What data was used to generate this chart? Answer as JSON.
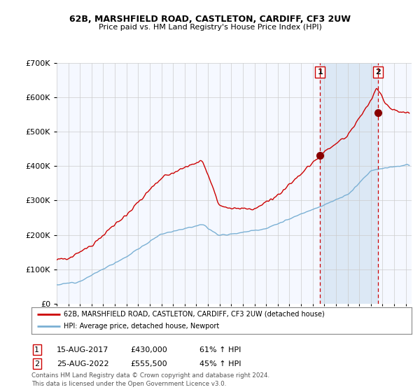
{
  "title1": "62B, MARSHFIELD ROAD, CASTLETON, CARDIFF, CF3 2UW",
  "title2": "Price paid vs. HM Land Registry's House Price Index (HPI)",
  "legend_label1": "62B, MARSHFIELD ROAD, CASTLETON, CARDIFF, CF3 2UW (detached house)",
  "legend_label2": "HPI: Average price, detached house, Newport",
  "transaction1_label": "15-AUG-2017",
  "transaction1_price": "£430,000",
  "transaction1_hpi": "61% ↑ HPI",
  "transaction2_label": "25-AUG-2022",
  "transaction2_price": "£555,500",
  "transaction2_hpi": "45% ↑ HPI",
  "footer": "Contains HM Land Registry data © Crown copyright and database right 2024.\nThis data is licensed under the Open Government Licence v3.0.",
  "ylim": [
    0,
    700000
  ],
  "xlim_start": 1995,
  "xlim_end": 2025.5,
  "color_red": "#cc0000",
  "color_blue": "#7ab0d4",
  "color_dashed": "#cc0000",
  "background_plot": "#f5f8ff",
  "background_highlight": "#dce8f5",
  "background_fig": "#ffffff",
  "grid_color": "#cccccc",
  "t1_x": 2017.625,
  "t1_y": 430000,
  "t2_x": 2022.625,
  "t2_y": 555500
}
